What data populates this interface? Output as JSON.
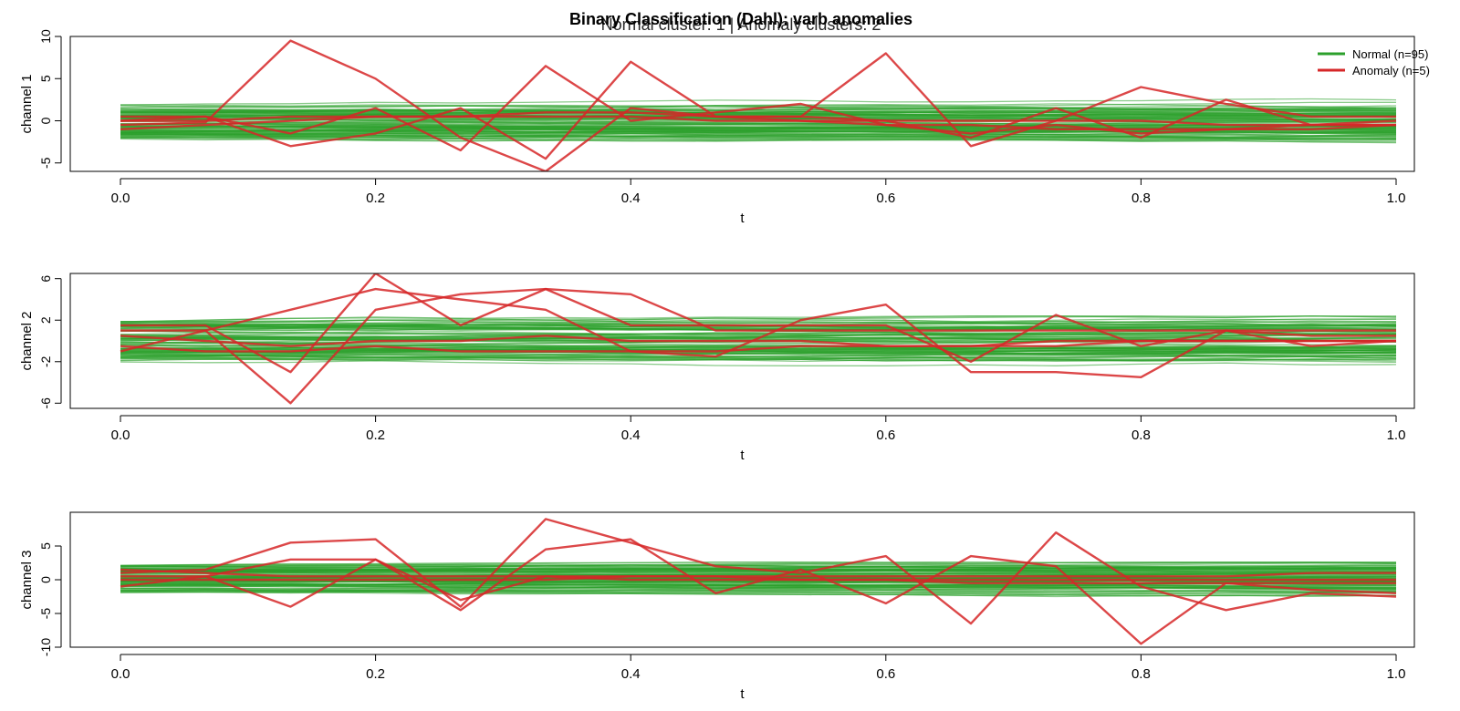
{
  "figure": {
    "title": "Binary Classification (Dahl): varb anomalies",
    "subtitle": "Normal cluster: 1 | Anomaly clusters: 2"
  },
  "colors": {
    "normal": "#2ca02c",
    "anomaly": "#d62728",
    "axis": "#000000"
  },
  "chart_data": [
    {
      "type": "line",
      "ylabel": "channel 1",
      "xlabel": "t",
      "xlim": [
        0,
        1
      ],
      "ylim": [
        -6,
        10
      ],
      "x_ticks": [
        "0.0",
        "0.2",
        "0.4",
        "0.6",
        "0.8",
        "1.0"
      ],
      "y_ticks": [
        "-5",
        "0",
        "5",
        "10"
      ],
      "legend": {
        "position": "top-right",
        "entries": [
          {
            "label": "Normal (n=95)",
            "color": "#2ca02c"
          },
          {
            "label": "Anomaly (n=5)",
            "color": "#d62728"
          }
        ]
      },
      "t": [
        0,
        0.0667,
        0.1333,
        0.2,
        0.2667,
        0.3333,
        0.4,
        0.4667,
        0.5333,
        0.6,
        0.6667,
        0.7333,
        0.8,
        0.8667,
        0.9333,
        1.0
      ],
      "normal_band": {
        "count": 95,
        "center": 0.0,
        "spread": 2.6
      },
      "anomaly_series": [
        {
          "values": [
            -0.5,
            -0.2,
            9.5,
            5.0,
            -2.0,
            -6.0,
            1.5,
            0.5,
            0.5,
            0.0,
            -2.0,
            1.5,
            -2.0,
            2.5,
            -0.5,
            0.0
          ]
        },
        {
          "values": [
            0.0,
            0.5,
            -3.0,
            -1.5,
            1.5,
            -4.5,
            7.0,
            0.5,
            0.5,
            8.0,
            -3.0,
            0.0,
            4.0,
            2.0,
            0.5,
            0.5
          ]
        },
        {
          "values": [
            0.5,
            0.5,
            -1.5,
            1.5,
            -3.5,
            6.5,
            0.0,
            1.0,
            2.0,
            -0.5,
            -1.5,
            -0.5,
            -1.5,
            -1.0,
            -1.0,
            -0.5
          ]
        },
        {
          "values": [
            -1.0,
            -0.5,
            0.0,
            0.5,
            0.5,
            0.5,
            0.5,
            0.0,
            0.0,
            0.0,
            0.0,
            0.0,
            0.0,
            -0.5,
            -0.5,
            -0.5
          ]
        },
        {
          "values": [
            0.0,
            0.0,
            0.5,
            0.5,
            0.5,
            1.0,
            1.0,
            0.5,
            0.0,
            -0.5,
            -0.5,
            -1.0,
            -1.0,
            -1.0,
            -0.5,
            -0.5
          ]
        }
      ]
    },
    {
      "type": "line",
      "ylabel": "channel 2",
      "xlabel": "t",
      "xlim": [
        0,
        1
      ],
      "ylim": [
        -6.5,
        6.5
      ],
      "x_ticks": [
        "0.0",
        "0.2",
        "0.4",
        "0.6",
        "0.8",
        "1.0"
      ],
      "y_ticks": [
        "-6",
        "-2",
        "2",
        "6"
      ],
      "t": [
        0,
        0.0667,
        0.1333,
        0.2,
        0.2667,
        0.3333,
        0.4,
        0.4667,
        0.5333,
        0.6,
        0.6667,
        0.7333,
        0.8,
        0.8667,
        0.9333,
        1.0
      ],
      "normal_band": {
        "count": 95,
        "center": 0.0,
        "spread": 2.4
      },
      "anomaly_series": [
        {
          "values": [
            1.5,
            1.5,
            -3.0,
            6.5,
            1.5,
            5.0,
            4.5,
            1.0,
            1.0,
            1.0,
            1.0,
            1.0,
            1.0,
            1.0,
            1.0,
            1.0
          ]
        },
        {
          "values": [
            1.0,
            1.0,
            -6.0,
            3.0,
            4.5,
            5.0,
            1.5,
            1.5,
            1.5,
            1.5,
            -2.0,
            2.5,
            -0.5,
            1.0,
            -0.5,
            0.0
          ]
        },
        {
          "values": [
            -1.0,
            1.0,
            3.0,
            5.0,
            4.0,
            3.0,
            -1.0,
            -1.5,
            2.0,
            3.5,
            -3.0,
            -3.0,
            -3.5,
            1.0,
            0.5,
            0.5
          ]
        },
        {
          "values": [
            0.5,
            0.0,
            -0.5,
            0.0,
            0.0,
            0.5,
            0.0,
            0.0,
            0.0,
            -0.5,
            -0.5,
            0.0,
            0.0,
            0.0,
            0.0,
            0.0
          ]
        },
        {
          "values": [
            -0.5,
            -1.0,
            -1.0,
            -0.5,
            -1.0,
            -1.0,
            -1.0,
            -1.0,
            -0.5,
            -0.5,
            -0.5,
            -0.5,
            0.0,
            0.0,
            0.0,
            0.0
          ]
        }
      ]
    },
    {
      "type": "line",
      "ylabel": "channel 3",
      "xlabel": "t",
      "xlim": [
        0,
        1
      ],
      "ylim": [
        -10,
        10
      ],
      "x_ticks": [
        "0.0",
        "0.2",
        "0.4",
        "0.6",
        "0.8",
        "1.0"
      ],
      "y_ticks": [
        "-10",
        "-5",
        "0",
        "5"
      ],
      "t": [
        0,
        0.0667,
        0.1333,
        0.2,
        0.2667,
        0.3333,
        0.4,
        0.4667,
        0.5333,
        0.6,
        0.6667,
        0.7333,
        0.8,
        0.8667,
        0.9333,
        1.0
      ],
      "normal_band": {
        "count": 95,
        "center": 0.0,
        "spread": 2.6
      },
      "anomaly_series": [
        {
          "values": [
            1.0,
            1.5,
            5.5,
            6.0,
            -4.0,
            9.0,
            5.5,
            2.0,
            1.0,
            3.5,
            -6.5,
            7.0,
            -1.0,
            -4.5,
            -2.0,
            -2.5
          ]
        },
        {
          "values": [
            0.5,
            0.5,
            -4.0,
            3.0,
            -4.5,
            4.5,
            6.0,
            -2.0,
            1.5,
            -3.5,
            3.5,
            2.0,
            -9.5,
            -0.5,
            -1.5,
            -2.0
          ]
        },
        {
          "values": [
            -1.0,
            0.5,
            3.0,
            3.0,
            -3.0,
            0.5,
            0.5,
            0.5,
            0.0,
            0.0,
            0.0,
            0.0,
            0.0,
            0.0,
            0.0,
            0.0
          ]
        },
        {
          "values": [
            1.5,
            1.0,
            0.5,
            0.5,
            0.5,
            0.5,
            0.0,
            0.0,
            0.0,
            0.0,
            -0.5,
            -0.5,
            -0.5,
            -0.5,
            -0.5,
            -0.5
          ]
        },
        {
          "values": [
            0.0,
            0.0,
            0.0,
            0.0,
            0.0,
            0.0,
            0.5,
            0.5,
            0.5,
            0.5,
            0.5,
            0.5,
            0.5,
            0.5,
            1.0,
            1.0
          ]
        }
      ]
    }
  ]
}
